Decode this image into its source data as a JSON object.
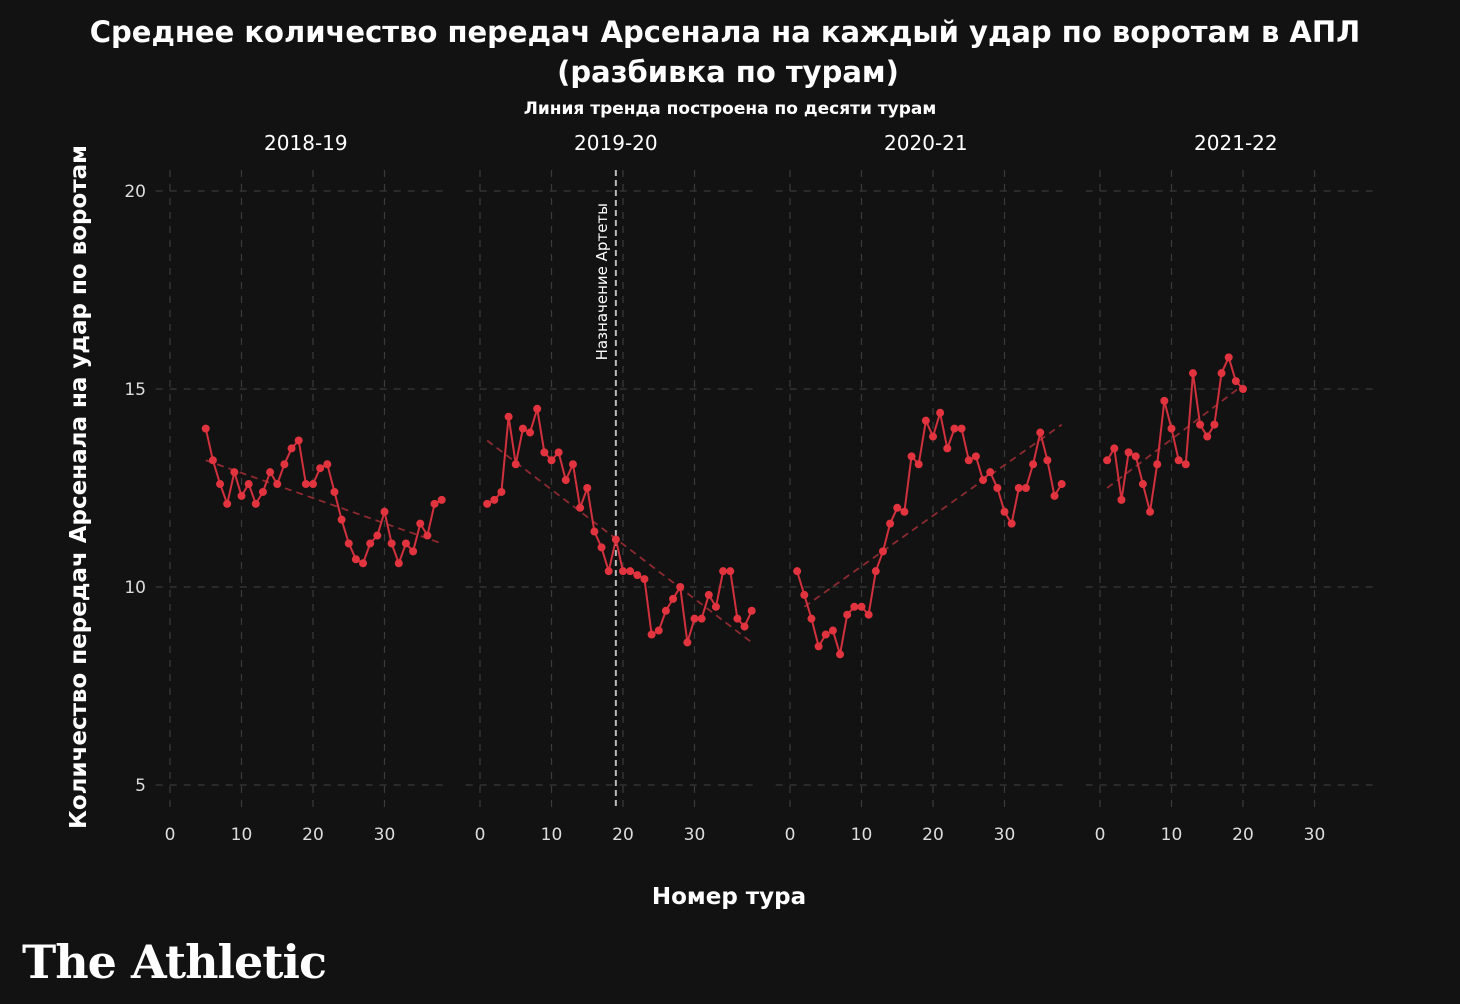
{
  "title_line1": "Среднее количество передач Арсенала на каждый удар по воротам в АПЛ",
  "title_line2": "(разбивка по турам)",
  "subtitle": "Линия тренда построена по десяти турам",
  "logo_text": "The Athletic",
  "colors": {
    "background": "#121212",
    "series": "#e2343f",
    "trend": "#8c2a30",
    "grid": "#3a3a3a",
    "text": "#ffffff"
  },
  "chart_data": {
    "type": "line",
    "title": "Среднее количество передач Арсенала на каждый удар по воротам в АПЛ (разбивка по турам)",
    "subtitle": "Линия тренда построена по десяти турам",
    "xlabel": "Номер тура",
    "ylabel": "Количество передач Арсенала на удар по воротам",
    "ylim": [
      4,
      20.5
    ],
    "yticks": [
      5,
      10,
      15,
      20
    ],
    "xlim": [
      -2,
      39
    ],
    "xticks": [
      0,
      10,
      20,
      30
    ],
    "grid": true,
    "facets": [
      {
        "label": "2018-19",
        "x": [
          5,
          6,
          7,
          8,
          9,
          10,
          11,
          12,
          13,
          14,
          15,
          16,
          17,
          18,
          19,
          20,
          21,
          22,
          23,
          24,
          25,
          26,
          27,
          28,
          29,
          30,
          31,
          32,
          33,
          34,
          35,
          36,
          37,
          38
        ],
        "values": [
          14.0,
          13.2,
          12.6,
          12.1,
          12.9,
          12.3,
          12.6,
          12.1,
          12.4,
          12.9,
          12.6,
          13.1,
          13.5,
          13.7,
          12.6,
          12.6,
          13.0,
          13.1,
          12.4,
          11.7,
          11.1,
          10.7,
          10.6,
          11.1,
          11.3,
          11.9,
          11.1,
          10.6,
          11.1,
          10.9,
          11.6,
          11.3,
          12.1,
          12.2
        ],
        "trend": {
          "x": [
            5,
            38
          ],
          "y": [
            13.2,
            11.1
          ]
        }
      },
      {
        "label": "2019-20",
        "x": [
          1,
          2,
          3,
          4,
          5,
          6,
          7,
          8,
          9,
          10,
          11,
          12,
          13,
          14,
          15,
          16,
          17,
          18,
          19,
          20,
          21,
          22,
          23,
          24,
          25,
          26,
          27,
          28,
          29,
          30,
          31,
          32,
          33,
          34,
          35,
          36,
          37,
          38
        ],
        "values": [
          12.1,
          12.2,
          12.4,
          14.3,
          13.1,
          14.0,
          13.9,
          14.5,
          13.4,
          13.2,
          13.4,
          12.7,
          13.1,
          12.0,
          12.5,
          11.4,
          11.0,
          10.4,
          11.2,
          10.4,
          10.4,
          10.3,
          10.2,
          8.8,
          8.9,
          9.4,
          9.7,
          10.0,
          8.6,
          9.2,
          9.2,
          9.8,
          9.5,
          10.4,
          10.4,
          9.2,
          9.0,
          9.4
        ],
        "trend": {
          "x": [
            1,
            38
          ],
          "y": [
            13.7,
            8.6
          ]
        },
        "annotation": {
          "x": 19,
          "label": "Назначение Артеты"
        }
      },
      {
        "label": "2020-21",
        "x": [
          1,
          2,
          3,
          4,
          5,
          6,
          7,
          8,
          9,
          10,
          11,
          12,
          13,
          14,
          15,
          16,
          17,
          18,
          19,
          20,
          21,
          22,
          23,
          24,
          25,
          26,
          27,
          28,
          29,
          30,
          31,
          32,
          33,
          34,
          35,
          36,
          37,
          38
        ],
        "values": [
          10.4,
          9.8,
          9.2,
          8.5,
          8.8,
          8.9,
          8.3,
          9.3,
          9.5,
          9.5,
          9.3,
          10.4,
          10.9,
          11.6,
          12.0,
          11.9,
          13.3,
          13.1,
          14.2,
          13.8,
          14.4,
          13.5,
          14.0,
          14.0,
          13.2,
          13.3,
          12.7,
          12.9,
          12.5,
          11.9,
          11.6,
          12.5,
          12.5,
          13.1,
          13.9,
          13.2,
          12.3,
          12.6
        ],
        "trend": {
          "x": [
            2,
            38
          ],
          "y": [
            9.5,
            14.1
          ]
        }
      },
      {
        "label": "2021-22",
        "x": [
          1,
          2,
          3,
          4,
          5,
          6,
          7,
          8,
          9,
          10,
          11,
          12,
          13,
          14,
          15,
          16,
          17,
          18,
          19,
          20
        ],
        "values": [
          13.2,
          13.5,
          12.2,
          13.4,
          13.3,
          12.6,
          11.9,
          13.1,
          14.7,
          14.0,
          13.2,
          13.1,
          15.4,
          14.1,
          13.8,
          14.1,
          15.4,
          15.8,
          15.2,
          15.0
        ],
        "trend": {
          "x": [
            1,
            20
          ],
          "y": [
            12.5,
            15.1
          ]
        }
      }
    ]
  }
}
